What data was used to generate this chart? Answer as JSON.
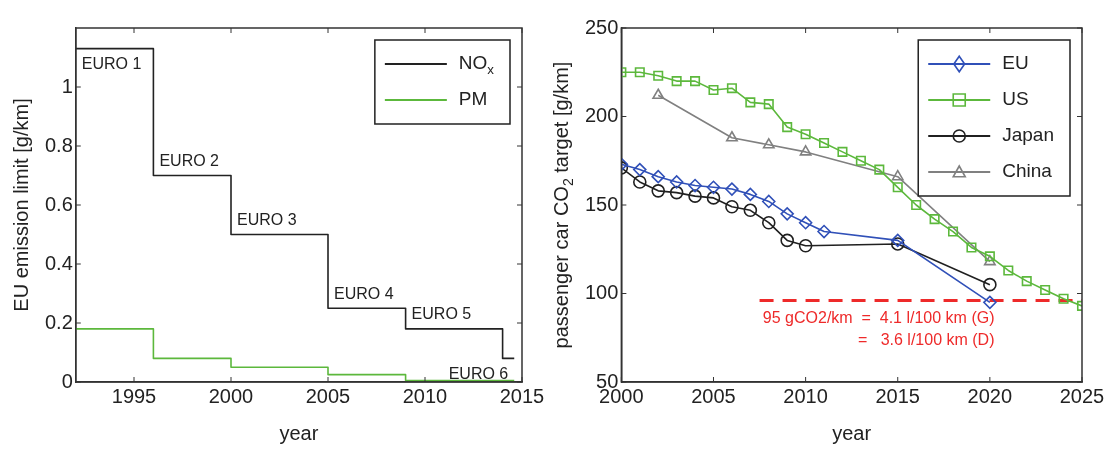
{
  "chart_data": [
    {
      "type": "step",
      "xlabel": "year",
      "ylabel": "EU emission limit [g/km]",
      "xlim": [
        1992,
        2015
      ],
      "xticks": [
        1995,
        2000,
        2005,
        2010,
        2015
      ],
      "ylim": [
        0,
        1.2
      ],
      "yticks": [
        0,
        0.2,
        0.4,
        0.6,
        0.8,
        1
      ],
      "grid": false,
      "legend": "top right",
      "series": [
        {
          "name": "NO$_{x}$",
          "color": "#222222",
          "x": [
            1992,
            1996,
            2000,
            2005,
            2009,
            2014,
            2014.6
          ],
          "values": [
            1.13,
            0.7,
            0.5,
            0.25,
            0.18,
            0.08,
            0.08
          ]
        },
        {
          "name": "PM",
          "color": "#5cb83c",
          "x": [
            1992,
            1996,
            2000,
            2005,
            2009,
            2014.6
          ],
          "values": [
            0.18,
            0.08,
            0.05,
            0.025,
            0.005,
            0.005
          ]
        }
      ],
      "annotations": [
        "EURO 1",
        "EURO 2",
        "EURO 3",
        "EURO 4",
        "EURO 5",
        "EURO 6"
      ]
    },
    {
      "type": "line",
      "xlabel": "year",
      "ylabel": "passenger car CO$_{2}$ target [g/km]",
      "xlim": [
        2000,
        2025
      ],
      "xticks": [
        2000,
        2005,
        2010,
        2015,
        2020,
        2025
      ],
      "ylim": [
        50,
        250
      ],
      "yticks": [
        50,
        100,
        150,
        200,
        250
      ],
      "grid": false,
      "legend": "top right",
      "series": [
        {
          "name": "EU",
          "color": "#3050b8",
          "marker": "diamond",
          "x": [
            2000,
            2001,
            2002,
            2003,
            2004,
            2005,
            2006,
            2007,
            2008,
            2009,
            2010,
            2011,
            2015,
            2020
          ],
          "values": [
            173,
            170,
            166,
            163,
            161,
            160,
            159,
            156,
            152,
            145,
            140,
            135,
            130,
            95
          ]
        },
        {
          "name": "US",
          "color": "#5cb83c",
          "marker": "square",
          "x": [
            2000,
            2001,
            2002,
            2003,
            2004,
            2005,
            2006,
            2007,
            2008,
            2009,
            2010,
            2011,
            2012,
            2013,
            2014,
            2015,
            2016,
            2017,
            2018,
            2019,
            2020,
            2021,
            2022,
            2023,
            2024,
            2025
          ],
          "values": [
            225,
            225,
            223,
            220,
            220,
            215,
            216,
            208,
            207,
            194,
            190,
            185,
            180,
            175,
            170,
            160,
            150,
            142,
            135,
            126,
            121,
            113,
            107,
            102,
            97,
            93
          ]
        },
        {
          "name": "Japan",
          "color": "#202020",
          "marker": "circle",
          "x": [
            2000,
            2001,
            2002,
            2003,
            2004,
            2005,
            2006,
            2007,
            2008,
            2009,
            2010,
            2015,
            2020
          ],
          "values": [
            171,
            163,
            158,
            157,
            155,
            154,
            149,
            147,
            140,
            130,
            127,
            128,
            105
          ]
        },
        {
          "name": "China",
          "color": "#808080",
          "marker": "triangle",
          "x": [
            2002,
            2006,
            2008,
            2010,
            2015,
            2020
          ],
          "values": [
            212,
            188,
            184,
            180,
            166,
            118
          ]
        },
        {
          "color": "#ee2a2a",
          "marker": "none",
          "line_style": "dashed",
          "x": [
            2007.5,
            2025
          ],
          "values": [
            96,
            96
          ]
        }
      ],
      "annotations": [
        "95 gCO2/km  =  4.1 l/100 km (G)",
        "=   3.6 l/100 km (D)"
      ]
    }
  ]
}
